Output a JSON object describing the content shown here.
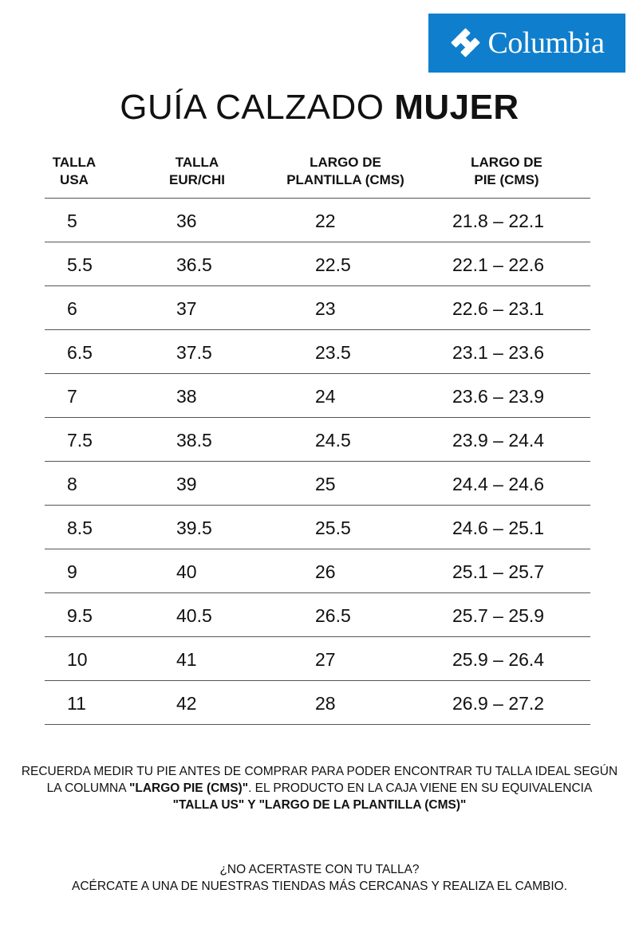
{
  "brand": {
    "logo_text": "Columbia",
    "color": "#0f7fcd"
  },
  "title": {
    "regular": "GUÍA CALZADO ",
    "bold": "MUJER"
  },
  "table": {
    "headers": [
      [
        "TALLA",
        "USA"
      ],
      [
        "TALLA",
        "EUR/CHI"
      ],
      [
        "LARGO DE",
        "PLANTILLA (CMS)"
      ],
      [
        "LARGO DE",
        "PIE (CMS)"
      ]
    ],
    "rows": [
      [
        "5",
        "36",
        "22",
        "21.8 – 22.1"
      ],
      [
        "5.5",
        "36.5",
        "22.5",
        "22.1 – 22.6"
      ],
      [
        "6",
        "37",
        "23",
        "22.6 – 23.1"
      ],
      [
        "6.5",
        "37.5",
        "23.5",
        "23.1 – 23.6"
      ],
      [
        "7",
        "38",
        "24",
        "23.6 – 23.9"
      ],
      [
        "7.5",
        "38.5",
        "24.5",
        "23.9 – 24.4"
      ],
      [
        "8",
        "39",
        "25",
        "24.4 – 24.6"
      ],
      [
        "8.5",
        "39.5",
        "25.5",
        "24.6 – 25.1"
      ],
      [
        "9",
        "40",
        "26",
        "25.1 – 25.7"
      ],
      [
        "9.5",
        "40.5",
        "26.5",
        "25.7 – 25.9"
      ],
      [
        "10",
        "41",
        "27",
        "25.9 – 26.4"
      ],
      [
        "11",
        "42",
        "28",
        "26.9 – 27.2"
      ]
    ]
  },
  "note": {
    "line1": "RECUERDA MEDIR TU PIE ANTES DE COMPRAR PARA PODER ENCONTRAR TU TALLA IDEAL SEGÚN",
    "line2_a": "LA COLUMNA ",
    "line2_bold": "\"LARGO PIE (CMS)\"",
    "line2_b": ". EL PRODUCTO EN LA CAJA VIENE EN SU EQUIVALENCIA",
    "line3_bold": "\"TALLA US\" Y \"LARGO DE LA PLANTILLA (CMS)\""
  },
  "footer": {
    "line1": "¿NO ACERTASTE CON TU TALLA?",
    "line2": "ACÉRCATE A UNA DE NUESTRAS TIENDAS MÁS CERCANAS Y REALIZA EL CAMBIO."
  }
}
